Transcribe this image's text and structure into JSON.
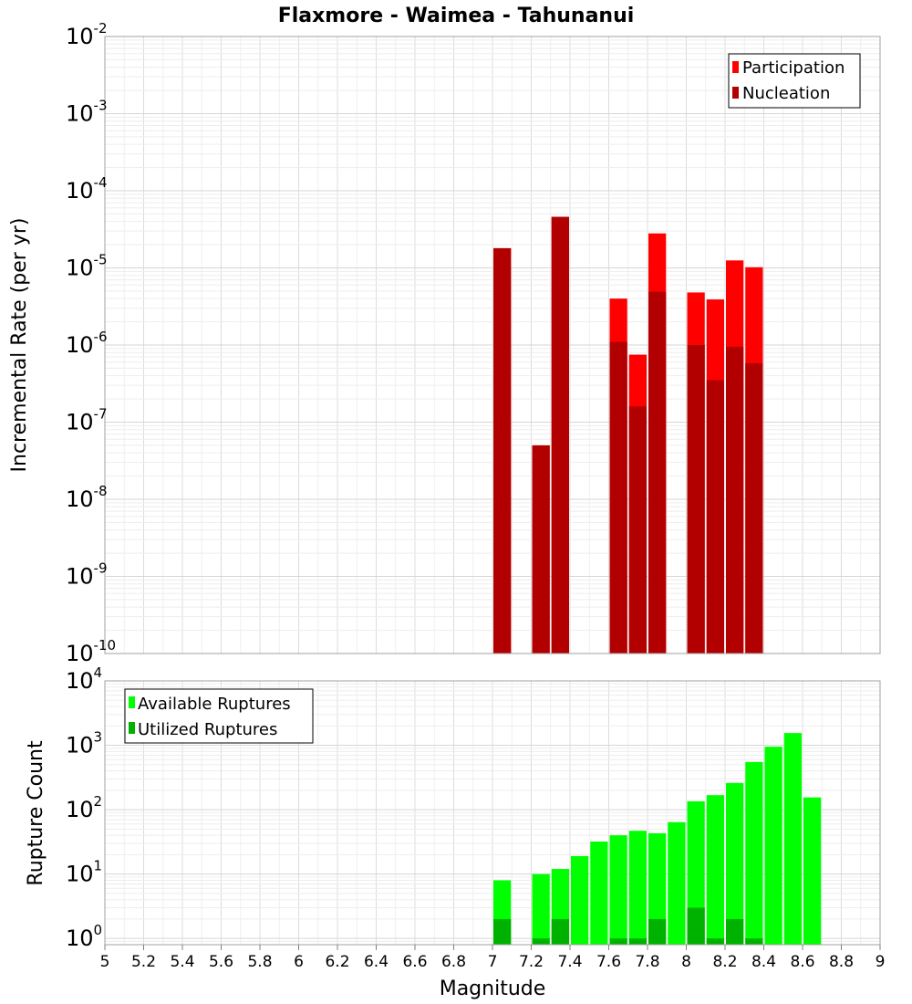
{
  "chart_data": [
    {
      "type": "bar",
      "title": "Flaxmore - Waimea - Tahunanui",
      "ylabel": "Incremental Rate (per yr)",
      "yscale": "log",
      "ylim": [
        1e-10,
        0.01
      ],
      "xlim": [
        5,
        9
      ],
      "grid": true,
      "legend_position": "top-right",
      "series": [
        {
          "name": "Participation",
          "color": "#ff0000",
          "x": [
            7.05,
            7.25,
            7.35,
            7.65,
            7.75,
            7.85,
            8.05,
            8.15,
            8.25,
            8.35
          ],
          "values": [
            1.8e-05,
            5e-08,
            4.6e-05,
            4e-06,
            7.5e-07,
            2.8e-05,
            4.8e-06,
            3.9e-06,
            1.25e-05,
            1.02e-05
          ]
        },
        {
          "name": "Nucleation",
          "color": "#b20000",
          "x": [
            7.05,
            7.25,
            7.35,
            7.65,
            7.75,
            7.85,
            8.05,
            8.15,
            8.25,
            8.35
          ],
          "values": [
            1.8e-05,
            5e-08,
            4.6e-05,
            1.1e-06,
            1.6e-07,
            4.9e-06,
            1e-06,
            3.5e-07,
            9.5e-07,
            5.8e-07
          ]
        }
      ]
    },
    {
      "type": "bar",
      "xlabel": "Magnitude",
      "ylabel": "Rupture Count",
      "yscale": "log",
      "ylim": [
        0.8,
        10000
      ],
      "xlim": [
        5,
        9
      ],
      "grid": true,
      "legend_position": "top-left",
      "x_ticks": [
        "5",
        "5.2",
        "5.4",
        "5.6",
        "5.8",
        "6",
        "6.2",
        "6.4",
        "6.6",
        "6.8",
        "7",
        "7.2",
        "7.4",
        "7.6",
        "7.8",
        "8",
        "8.2",
        "8.4",
        "8.6",
        "8.8",
        "9"
      ],
      "series": [
        {
          "name": "Available Ruptures",
          "color": "#00ff00",
          "x": [
            7.05,
            7.25,
            7.35,
            7.45,
            7.55,
            7.65,
            7.75,
            7.85,
            7.95,
            8.05,
            8.15,
            8.25,
            8.35,
            8.45,
            8.55,
            8.65
          ],
          "values": [
            8,
            10,
            12,
            19,
            32,
            40,
            47,
            43,
            64,
            135,
            168,
            260,
            550,
            950,
            1550,
            155
          ]
        },
        {
          "name": "Utilized Ruptures",
          "color": "#00b200",
          "x": [
            7.05,
            7.25,
            7.35,
            7.65,
            7.75,
            7.85,
            8.05,
            8.15,
            8.25,
            8.35
          ],
          "values": [
            2,
            1,
            2,
            1,
            1,
            2,
            3,
            1,
            2,
            1
          ]
        }
      ]
    }
  ]
}
